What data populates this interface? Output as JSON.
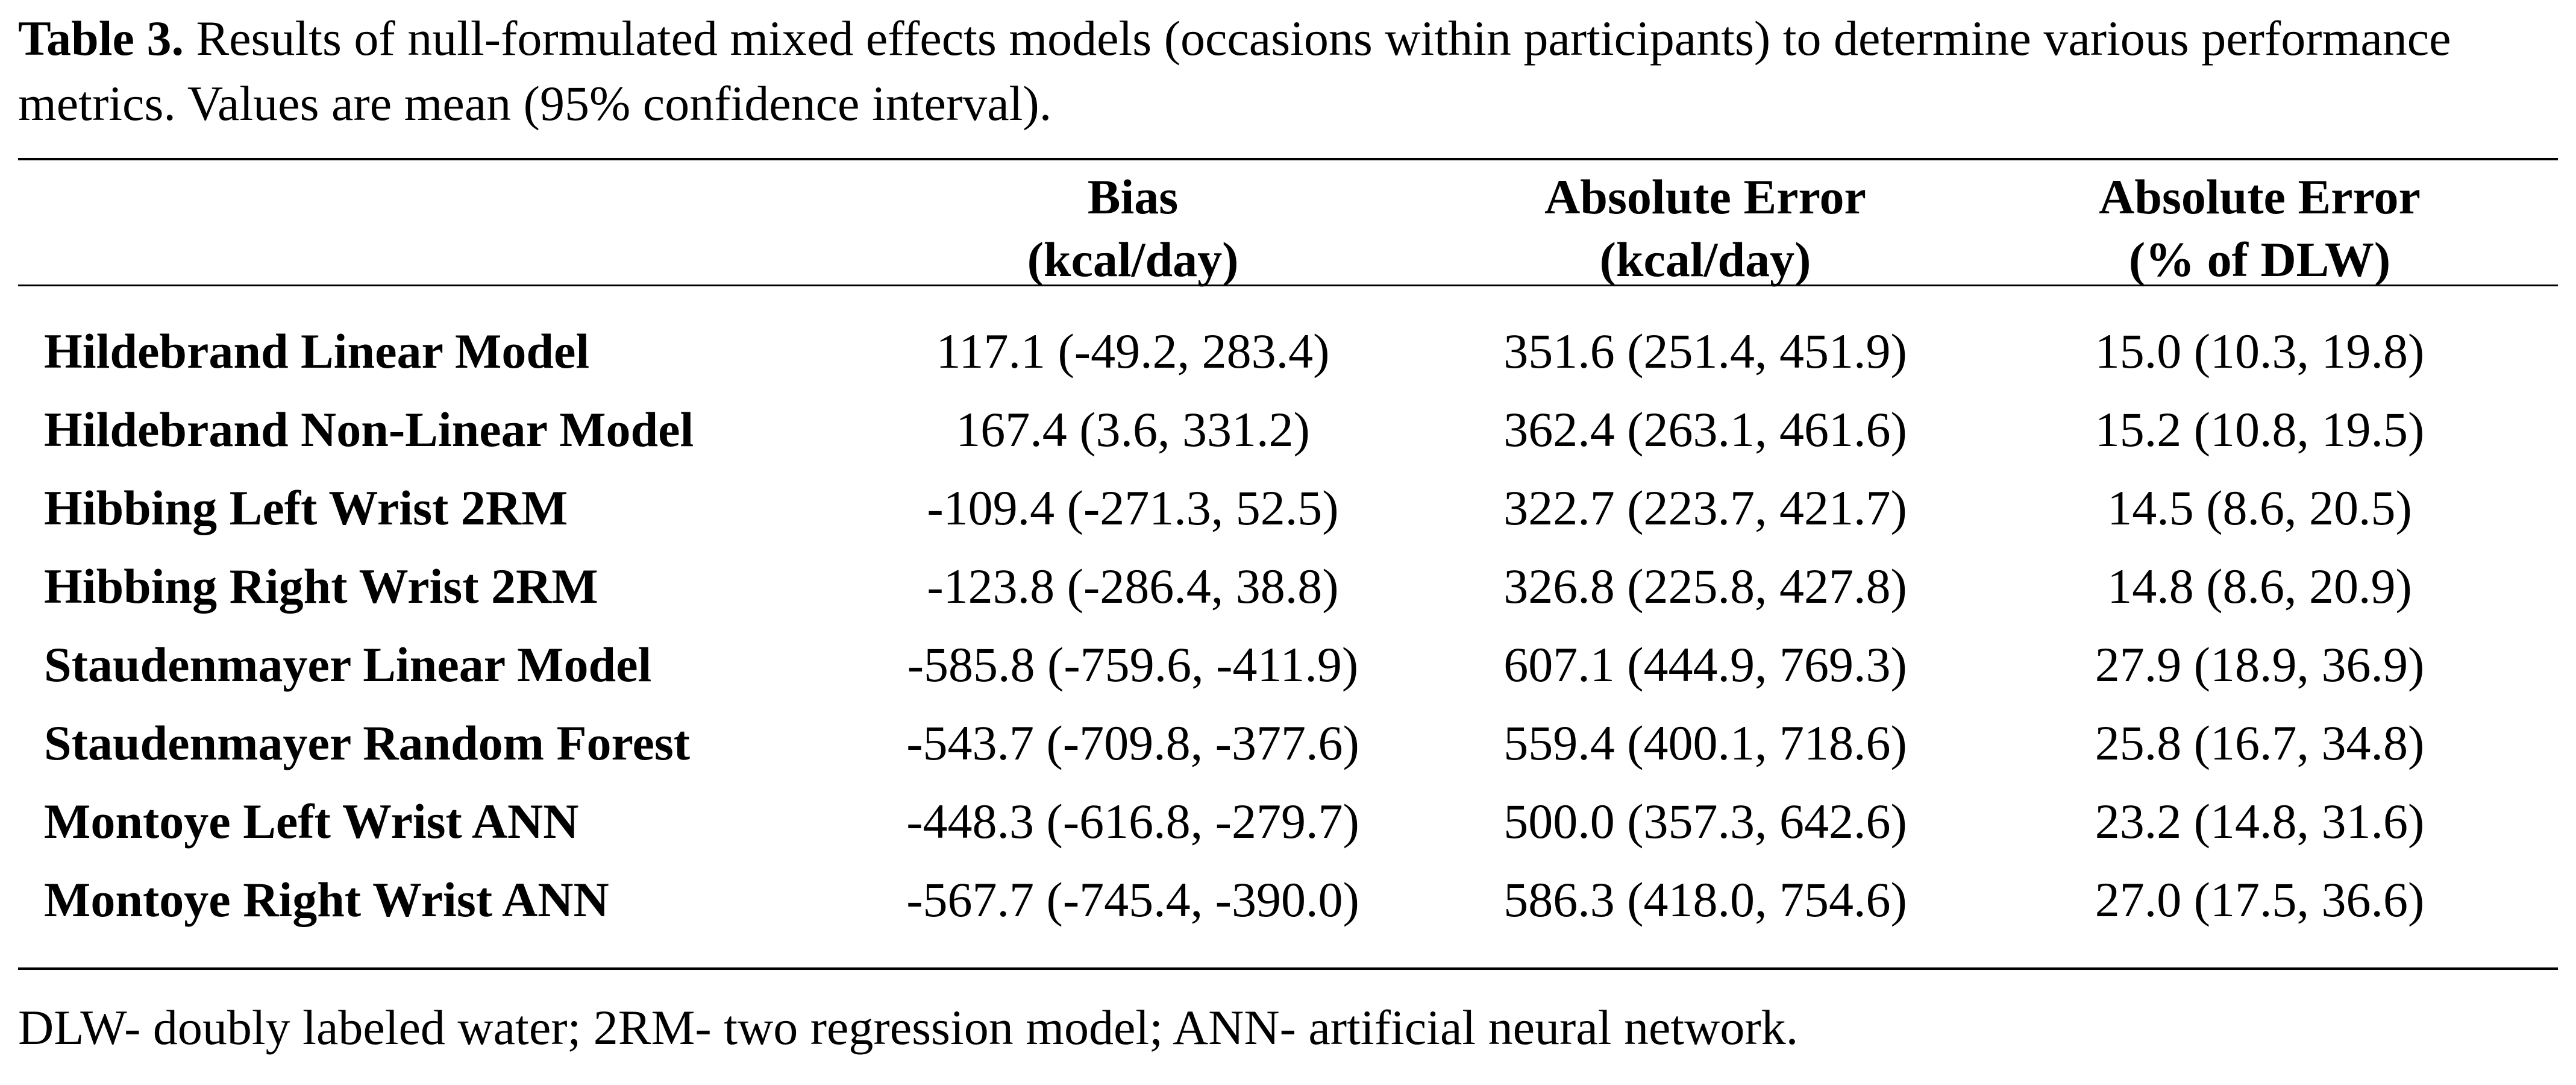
{
  "caption": {
    "label": "Table 3.",
    "text": " Results of null-formulated mixed effects models (occasions within participants) to determine various performance metrics. Values are mean (95% confidence interval)."
  },
  "columns": [
    {
      "line1": "Bias",
      "line2": "(kcal/day)"
    },
    {
      "line1": "Absolute Error",
      "line2": "(kcal/day)"
    },
    {
      "line1": "Absolute Error",
      "line2": "(% of DLW)"
    }
  ],
  "rows": [
    {
      "model": "Hildebrand Linear Model",
      "bias": "117.1 (-49.2, 283.4)",
      "abs_error_kcal": "351.6 (251.4, 451.9)",
      "abs_error_pct": "15.0 (10.3, 19.8)"
    },
    {
      "model": "Hildebrand Non-Linear Model",
      "bias": "167.4 (3.6, 331.2)",
      "abs_error_kcal": "362.4 (263.1, 461.6)",
      "abs_error_pct": "15.2 (10.8, 19.5)"
    },
    {
      "model": "Hibbing Left Wrist 2RM",
      "bias": "-109.4 (-271.3, 52.5)",
      "abs_error_kcal": "322.7 (223.7, 421.7)",
      "abs_error_pct": "14.5 (8.6, 20.5)"
    },
    {
      "model": "Hibbing Right Wrist 2RM",
      "bias": "-123.8 (-286.4, 38.8)",
      "abs_error_kcal": "326.8 (225.8, 427.8)",
      "abs_error_pct": "14.8 (8.6, 20.9)"
    },
    {
      "model": "Staudenmayer Linear Model",
      "bias": "-585.8 (-759.6, -411.9)",
      "abs_error_kcal": "607.1 (444.9, 769.3)",
      "abs_error_pct": "27.9 (18.9, 36.9)"
    },
    {
      "model": "Staudenmayer Random Forest",
      "bias": "-543.7 (-709.8, -377.6)",
      "abs_error_kcal": "559.4 (400.1, 718.6)",
      "abs_error_pct": "25.8 (16.7, 34.8)"
    },
    {
      "model": "Montoye Left Wrist ANN",
      "bias": "-448.3 (-616.8, -279.7)",
      "abs_error_kcal": "500.0 (357.3, 642.6)",
      "abs_error_pct": "23.2 (14.8, 31.6)"
    },
    {
      "model": "Montoye Right Wrist ANN",
      "bias": "-567.7 (-745.4, -390.0)",
      "abs_error_kcal": "586.3 (418.0, 754.6)",
      "abs_error_pct": "27.0 (17.5, 36.6)"
    }
  ],
  "footnote": "DLW- doubly labeled water; 2RM- two regression model; ANN- artificial neural network."
}
